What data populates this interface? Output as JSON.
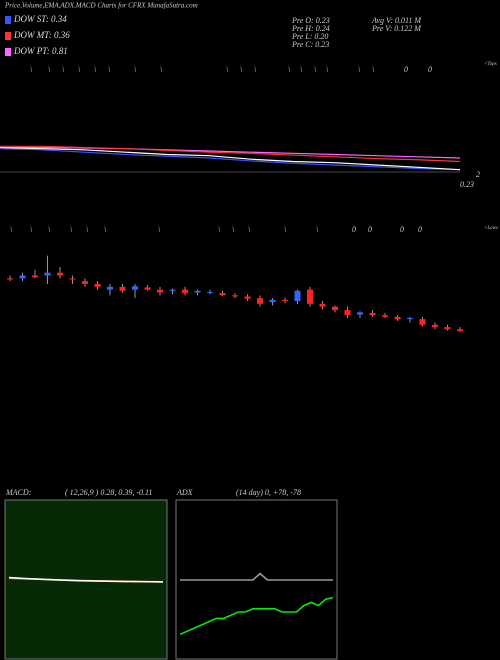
{
  "header": {
    "title": "Price,Volume,EMA,ADX,MACD Charts for CFRX  MunafaSutra.com",
    "legend": [
      {
        "label": "DOW ST: 0.34",
        "color": "#3355ff"
      },
      {
        "label": "DOW MT: 0.36",
        "color": "#ff3333"
      },
      {
        "label": "DOW PT: 0.81",
        "color": "#ff66ff"
      }
    ],
    "stats": [
      "Pre  O: 0.23",
      "Pre  H: 0.24",
      "Pre  L: 0.20",
      "Pre  C: 0.23",
      "Avg V: 0.011 M",
      "Pre  V: 0.122  M"
    ]
  },
  "markers": {
    "tops_label": "<Tops",
    "tops": [
      "\\",
      "\\",
      "\\",
      "\\",
      "\\",
      "\\",
      "\\",
      "\\",
      "\\",
      "\\",
      "\\",
      "\\",
      "\\",
      "\\",
      "\\",
      "\\",
      "\\",
      "0",
      "0"
    ],
    "lows_label": "<Lows",
    "lows": [
      "\\",
      "\\",
      "\\",
      "\\",
      "\\",
      "\\",
      "\\",
      "\\",
      "\\",
      "\\",
      "\\",
      "\\",
      "0",
      "0",
      "0",
      "0"
    ]
  },
  "chart_data": [
    {
      "type": "line",
      "ylim": [
        0.18,
        0.42
      ],
      "annotations": [
        "2",
        "0.23"
      ],
      "series": [
        {
          "color": "#ff66ff",
          "values": [
            0.27,
            0.27,
            0.269,
            0.268,
            0.266,
            0.264,
            0.262,
            0.26,
            0.258,
            0.256,
            0.254,
            0.252
          ]
        },
        {
          "color": "#ff3333",
          "values": [
            0.272,
            0.272,
            0.27,
            0.268,
            0.265,
            0.262,
            0.26,
            0.257,
            0.254,
            0.251,
            0.249,
            0.246
          ]
        },
        {
          "color": "#3355ff",
          "values": [
            0.268,
            0.266,
            0.262,
            0.258,
            0.255,
            0.252,
            0.247,
            0.243,
            0.24,
            0.237,
            0.234,
            0.232
          ]
        },
        {
          "color": "#ffffff",
          "values": [
            0.27,
            0.268,
            0.266,
            0.262,
            0.258,
            0.256,
            0.25,
            0.246,
            0.244,
            0.24,
            0.236,
            0.232
          ]
        }
      ]
    },
    {
      "type": "candlestick",
      "ylim": [
        0.24,
        0.39
      ],
      "up_color": "#3366ff",
      "down_color": "#ff2222",
      "open": [
        0.34,
        0.34,
        0.345,
        0.345,
        0.35,
        0.34,
        0.335,
        0.33,
        0.32,
        0.325,
        0.32,
        0.324,
        0.32,
        0.318,
        0.32,
        0.315,
        0.316,
        0.314,
        0.31,
        0.308,
        0.305,
        0.298,
        0.302,
        0.3,
        0.32,
        0.295,
        0.29,
        0.284,
        0.276,
        0.279,
        0.275,
        0.272,
        0.268,
        0.268,
        0.258,
        0.254,
        0.25
      ],
      "high": [
        0.345,
        0.35,
        0.355,
        0.38,
        0.36,
        0.345,
        0.34,
        0.335,
        0.33,
        0.33,
        0.33,
        0.328,
        0.325,
        0.322,
        0.325,
        0.32,
        0.32,
        0.318,
        0.314,
        0.312,
        0.31,
        0.305,
        0.306,
        0.32,
        0.325,
        0.3,
        0.292,
        0.29,
        0.282,
        0.284,
        0.279,
        0.275,
        0.272,
        0.272,
        0.262,
        0.258,
        0.254
      ],
      "low": [
        0.335,
        0.335,
        0.34,
        0.33,
        0.34,
        0.33,
        0.325,
        0.32,
        0.31,
        0.315,
        0.305,
        0.318,
        0.31,
        0.312,
        0.31,
        0.31,
        0.312,
        0.308,
        0.305,
        0.3,
        0.29,
        0.292,
        0.296,
        0.295,
        0.29,
        0.285,
        0.28,
        0.27,
        0.27,
        0.272,
        0.27,
        0.265,
        0.262,
        0.255,
        0.25,
        0.248,
        0.245
      ],
      "close": [
        0.338,
        0.345,
        0.342,
        0.35,
        0.345,
        0.338,
        0.33,
        0.325,
        0.325,
        0.318,
        0.326,
        0.32,
        0.315,
        0.32,
        0.314,
        0.318,
        0.316,
        0.31,
        0.308,
        0.304,
        0.295,
        0.302,
        0.3,
        0.318,
        0.295,
        0.29,
        0.284,
        0.275,
        0.28,
        0.275,
        0.272,
        0.268,
        0.27,
        0.258,
        0.254,
        0.25,
        0.247
      ]
    },
    {
      "type": "line",
      "title": "MACD:",
      "subtitle": "( 12,26,9 ) 0.28, 0.39, -0.11",
      "ylim": [
        -1,
        1
      ],
      "background": "#062a06",
      "series": [
        {
          "color": "#ff3333",
          "values": [
            0.02,
            0.015,
            0.01,
            0.005,
            0,
            -0.005,
            -0.01,
            -0.012,
            -0.015,
            -0.018,
            -0.02,
            -0.022
          ]
        },
        {
          "color": "#ffffff",
          "values": [
            0.03,
            0.02,
            0.012,
            0.004,
            -0.002,
            -0.008,
            -0.012,
            -0.015,
            -0.018,
            -0.02,
            -0.022,
            -0.024
          ]
        }
      ]
    },
    {
      "type": "line",
      "title": "ADX",
      "subtitle": "(14  day) 0, +78, -78",
      "ylim": [
        0,
        100
      ],
      "background": "#000000",
      "series": [
        {
          "color": "#999999",
          "values": [
            50,
            50,
            50,
            50,
            50,
            50,
            50,
            50,
            50,
            50,
            50,
            54,
            50,
            50,
            50,
            50,
            50,
            50,
            50,
            50,
            50,
            50
          ]
        },
        {
          "color": "#00ee00",
          "values": [
            16,
            18,
            20,
            22,
            24,
            26,
            26,
            28,
            30,
            30,
            32,
            32,
            32,
            32,
            30,
            30,
            30,
            34,
            36,
            34,
            38,
            39
          ]
        }
      ]
    }
  ]
}
